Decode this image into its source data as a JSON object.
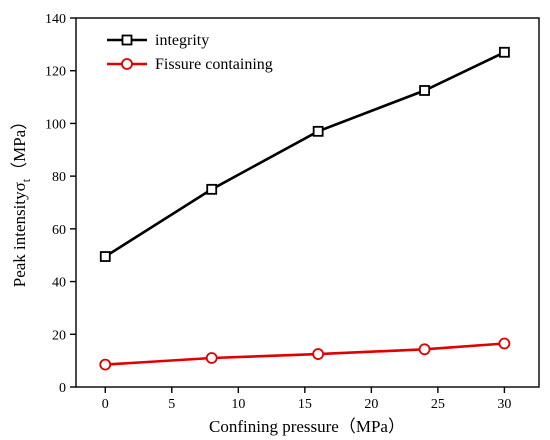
{
  "chart_data": {
    "type": "line",
    "x": [
      0,
      8,
      16,
      24,
      30
    ],
    "series": [
      {
        "name": "integrity",
        "values": [
          49.5,
          75,
          97,
          112.5,
          127
        ],
        "color": "#000000",
        "marker": "square"
      },
      {
        "name": "Fissure containing",
        "values": [
          8.5,
          11,
          12.5,
          14.3,
          16.5
        ],
        "color": "#e00000",
        "marker": "circle"
      }
    ],
    "xlabel": "Confining pressure（MPa）",
    "ylabel_main": "Peak intensityσ",
    "ylabel_sub": "t",
    "ylabel_unit": "（MPa）",
    "xlim": [
      -2.2,
      32.6
    ],
    "ylim": [
      0,
      140
    ],
    "xticks": [
      0,
      5,
      10,
      15,
      20,
      25,
      30
    ],
    "yticks": [
      0,
      20,
      40,
      60,
      80,
      100,
      120,
      140
    ],
    "grid": false,
    "legend_position": "top-left"
  }
}
